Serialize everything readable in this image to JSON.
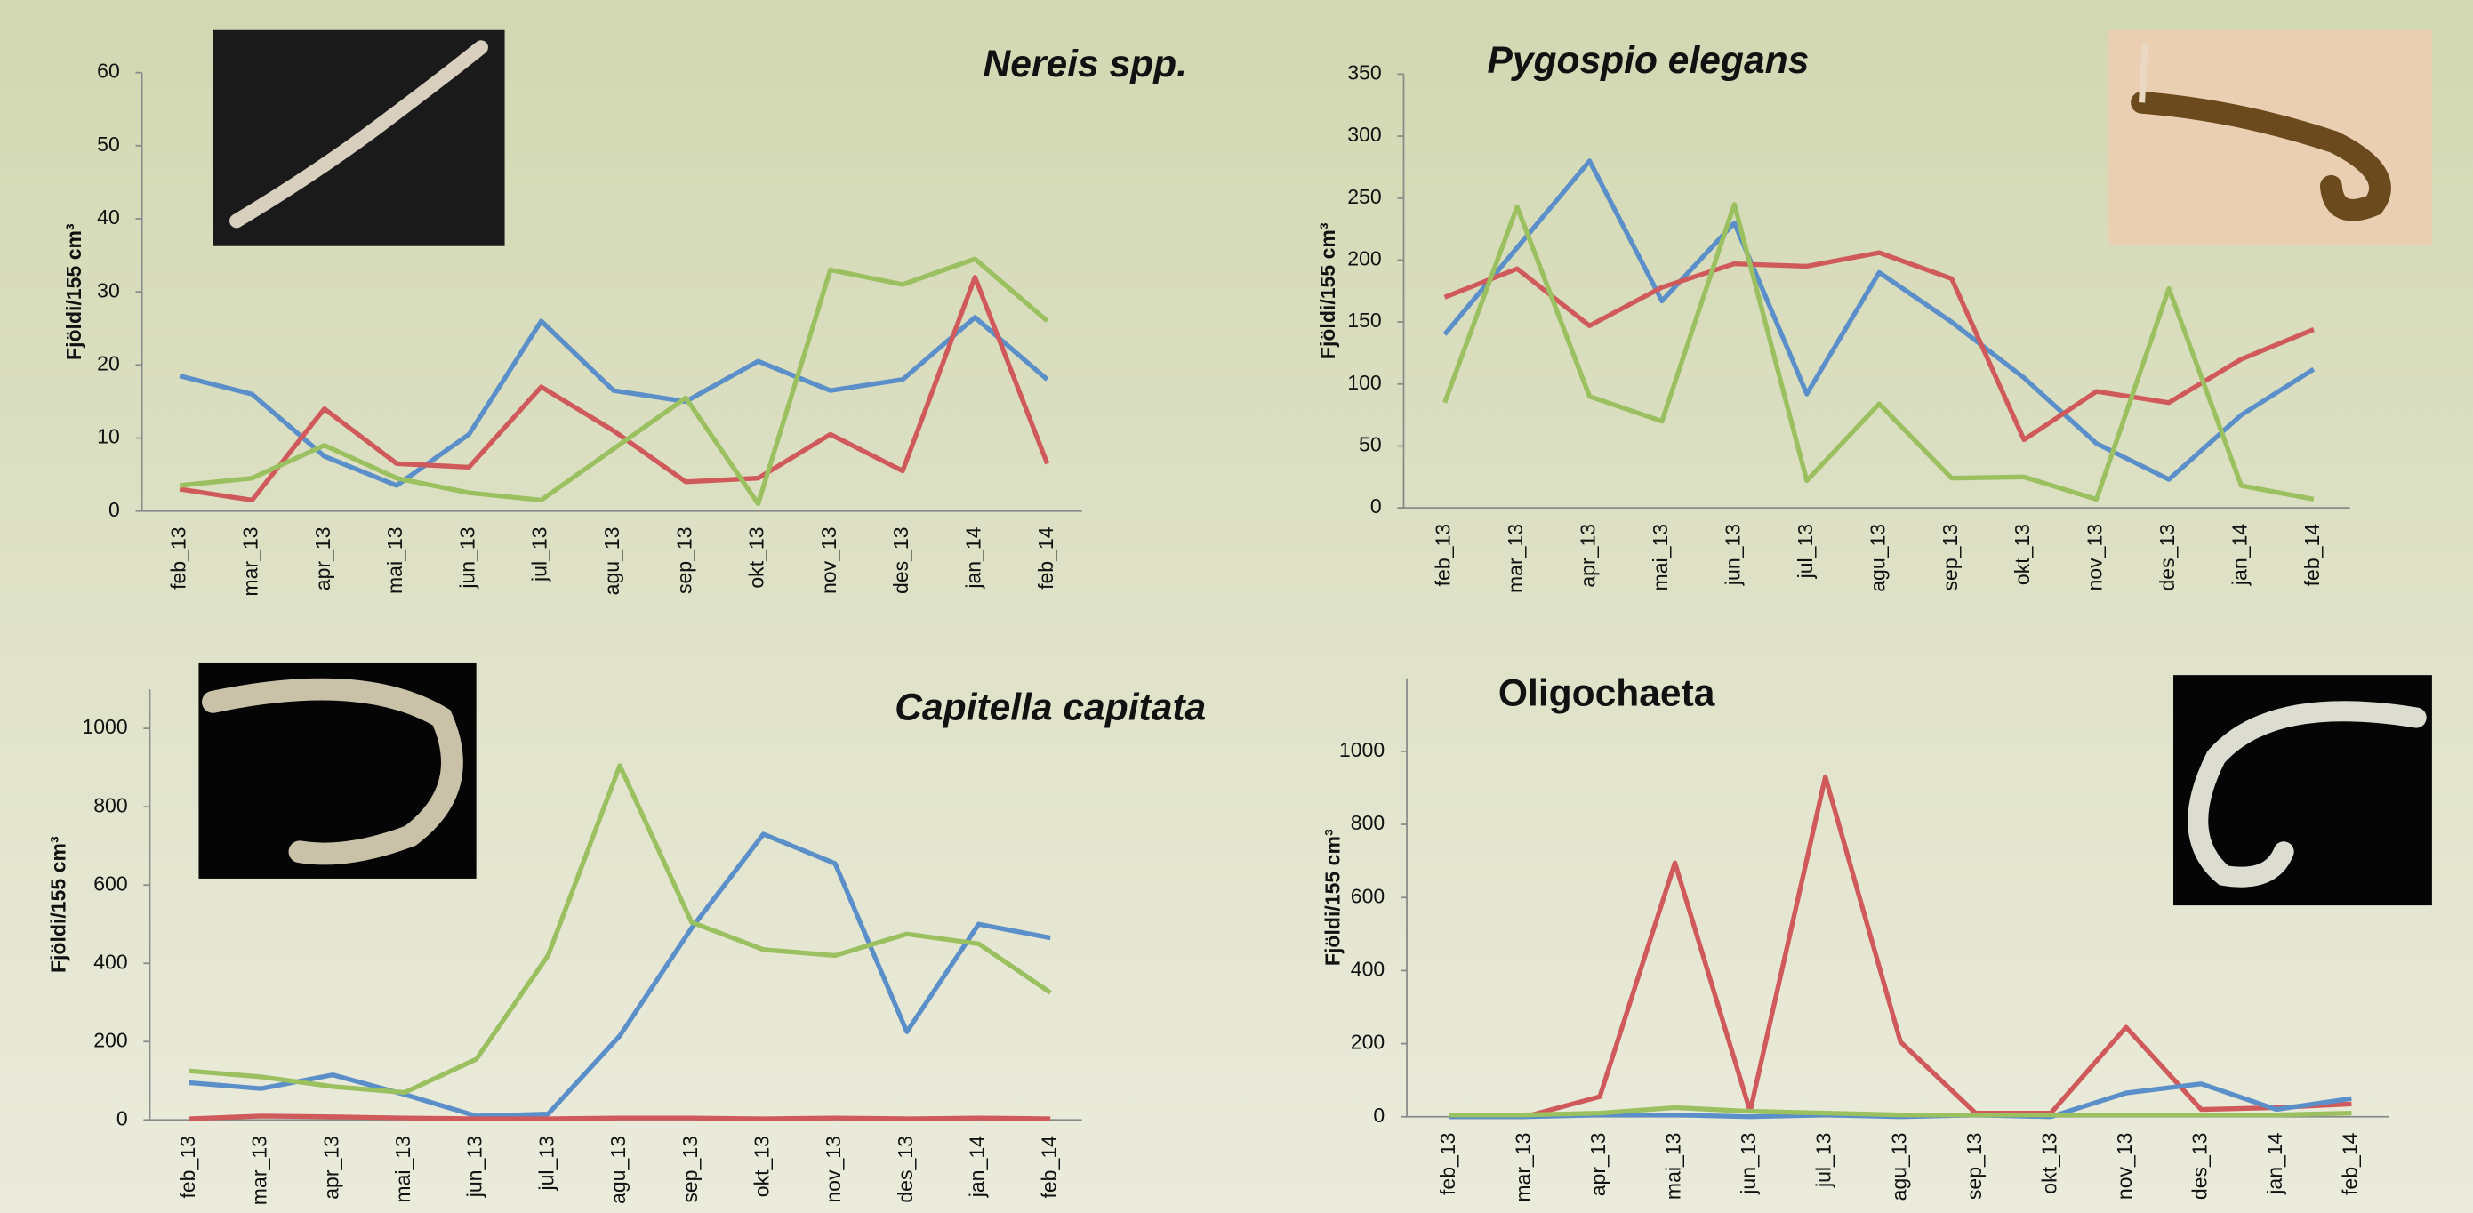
{
  "chart_data": [
    {
      "type": "line",
      "title": "Nereis spp.",
      "ylabel": "Fjöldi/155 cm³",
      "categories": [
        "feb_13",
        "mar_13",
        "apr_13",
        "mai_13",
        "jun_13",
        "jul_13",
        "agu_13",
        "sep_13",
        "okt_13",
        "nov_13",
        "des_13",
        "jan_14",
        "feb_14"
      ],
      "series": [
        {
          "color": "#5b8fc9",
          "values": [
            18.5,
            16,
            7.5,
            3.5,
            10.5,
            26,
            16.5,
            15,
            20.5,
            16.5,
            18,
            26.5,
            18
          ]
        },
        {
          "color": "#d0595b",
          "values": [
            3,
            1.5,
            14,
            6.5,
            6,
            17,
            11,
            4,
            4.5,
            10.5,
            5.5,
            32,
            6.5
          ]
        },
        {
          "color": "#9bc060",
          "values": [
            3.5,
            4.5,
            9,
            4.5,
            2.5,
            1.5,
            8.5,
            15.5,
            1,
            33,
            31,
            34.5,
            26
          ]
        }
      ],
      "ylim": [
        0,
        60
      ],
      "yticks": [
        0,
        10,
        20,
        30,
        40,
        50,
        60
      ]
    },
    {
      "type": "line",
      "title": "Pygospio elegans",
      "ylabel": "Fjöldi/155 cm³",
      "categories": [
        "feb_13",
        "mar_13",
        "apr_13",
        "mai_13",
        "jun_13",
        "jul_13",
        "agu_13",
        "sep_13",
        "okt_13",
        "nov_13",
        "des_13",
        "jan_14",
        "feb_14"
      ],
      "series": [
        {
          "color": "#5b8fc9",
          "values": [
            140,
            210,
            280,
            167,
            230,
            92,
            190,
            150,
            105,
            52,
            23,
            75,
            112
          ]
        },
        {
          "color": "#d0595b",
          "values": [
            170,
            193,
            147,
            178,
            197,
            195,
            206,
            185,
            55,
            94,
            85,
            120,
            144
          ]
        },
        {
          "color": "#9bc060",
          "values": [
            85,
            243,
            90,
            70,
            245,
            22,
            84,
            24,
            25,
            7,
            177,
            18,
            7
          ]
        }
      ],
      "ylim": [
        0,
        350
      ],
      "yticks": [
        0,
        50,
        100,
        150,
        200,
        250,
        300,
        350
      ]
    },
    {
      "type": "line",
      "title": "Capitella capitata",
      "ylabel": "Fjöldi/155 cm³",
      "categories": [
        "feb_13",
        "mar_13",
        "apr_13",
        "mai_13",
        "jun_13",
        "jul_13",
        "agu_13",
        "sep_13",
        "okt_13",
        "nov_13",
        "des_13",
        "jan_14",
        "feb_14"
      ],
      "series": [
        {
          "color": "#5b8fc9",
          "values": [
            95,
            80,
            115,
            65,
            10,
            15,
            215,
            490,
            730,
            655,
            225,
            500,
            465
          ]
        },
        {
          "color": "#d0595b",
          "values": [
            3,
            10,
            8,
            5,
            3,
            3,
            5,
            5,
            3,
            5,
            3,
            5,
            3
          ]
        },
        {
          "color": "#9bc060",
          "values": [
            125,
            110,
            85,
            70,
            155,
            420,
            905,
            505,
            435,
            420,
            475,
            450,
            325
          ]
        }
      ],
      "ylim": [
        0,
        1100
      ],
      "yticks": [
        0,
        200,
        400,
        600,
        800,
        1000
      ]
    },
    {
      "type": "line",
      "title": "Oligochaeta",
      "ylabel": "Fjöldi/155 cm³",
      "categories": [
        "feb_13",
        "mar_13",
        "apr_13",
        "mai_13",
        "jun_13",
        "jul_13",
        "agu_13",
        "sep_13",
        "okt_13",
        "nov_13",
        "des_13",
        "jan_14",
        "feb_14"
      ],
      "series": [
        {
          "color": "#d0595b",
          "values": [
            0,
            0,
            55,
            695,
            15,
            930,
            205,
            10,
            10,
            245,
            20,
            25,
            35
          ]
        },
        {
          "color": "#5b8fc9",
          "values": [
            0,
            0,
            5,
            5,
            0,
            5,
            0,
            5,
            0,
            65,
            90,
            20,
            50
          ]
        },
        {
          "color": "#9bc060",
          "values": [
            5,
            5,
            10,
            25,
            15,
            10,
            5,
            5,
            5,
            5,
            5,
            5,
            10
          ]
        }
      ],
      "ylim": [
        0,
        1200
      ],
      "yticks": [
        0,
        200,
        400,
        600,
        800,
        1000
      ]
    }
  ]
}
